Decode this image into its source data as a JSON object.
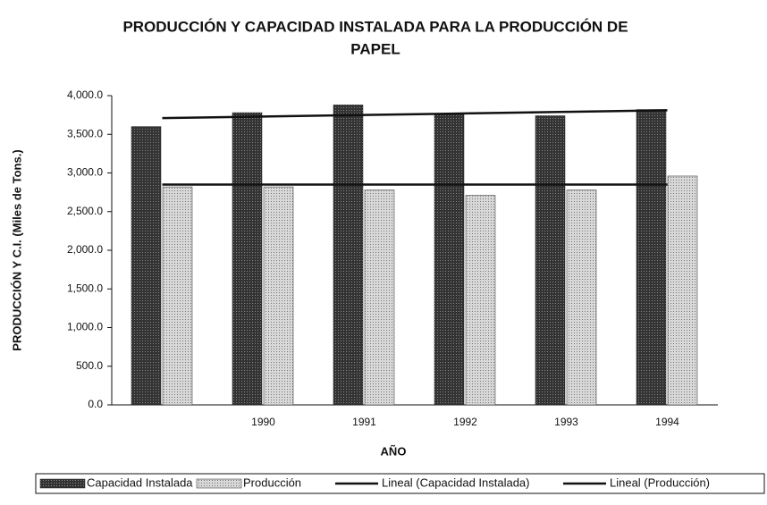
{
  "chart_data": {
    "type": "bar",
    "title": "PRODUCCIÓN Y CAPACIDAD INSTALADA PARA LA PRODUCCIÓN DE",
    "title_line2": "PAPEL",
    "x_label": "AÑO",
    "y_label": "PRODUCCIÓN Y C.I. (Miles de Tons.)",
    "categories": [
      null,
      "1990",
      "1991",
      "1992",
      "1993",
      "1994"
    ],
    "series": [
      {
        "name": "Capacidad Instalada",
        "type": "bar",
        "color": "#333333",
        "values": [
          3600,
          3780,
          3880,
          3760,
          3740,
          3820
        ]
      },
      {
        "name": "Producción",
        "type": "bar",
        "color": "#c4c4c4",
        "values": [
          2820,
          2820,
          2780,
          2710,
          2780,
          2960
        ]
      },
      {
        "name": "Lineal (Capacidad Instalada)",
        "type": "line",
        "color": "#111111",
        "values": [
          3710,
          3730,
          3750,
          3770,
          3790,
          3810
        ]
      },
      {
        "name": "Lineal (Producción)",
        "type": "line",
        "color": "#111111",
        "values": [
          2850,
          2850,
          2850,
          2850,
          2850,
          2850
        ]
      }
    ],
    "ylim": [
      0,
      4000
    ],
    "yticks": [
      {
        "value": 0,
        "label": "0.0"
      },
      {
        "value": 500,
        "label": "500.0"
      },
      {
        "value": 1000,
        "label": "1,000.0"
      },
      {
        "value": 1500,
        "label": "1,500.0"
      },
      {
        "value": 2000,
        "label": "2,000.0"
      },
      {
        "value": 2500,
        "label": "2,500.0"
      },
      {
        "value": 3000,
        "label": "3,000.0"
      },
      {
        "value": 3500,
        "label": "3,500.0"
      },
      {
        "value": 4000,
        "label": "4,000.0"
      }
    ],
    "grid": false,
    "legend": "bottom"
  }
}
